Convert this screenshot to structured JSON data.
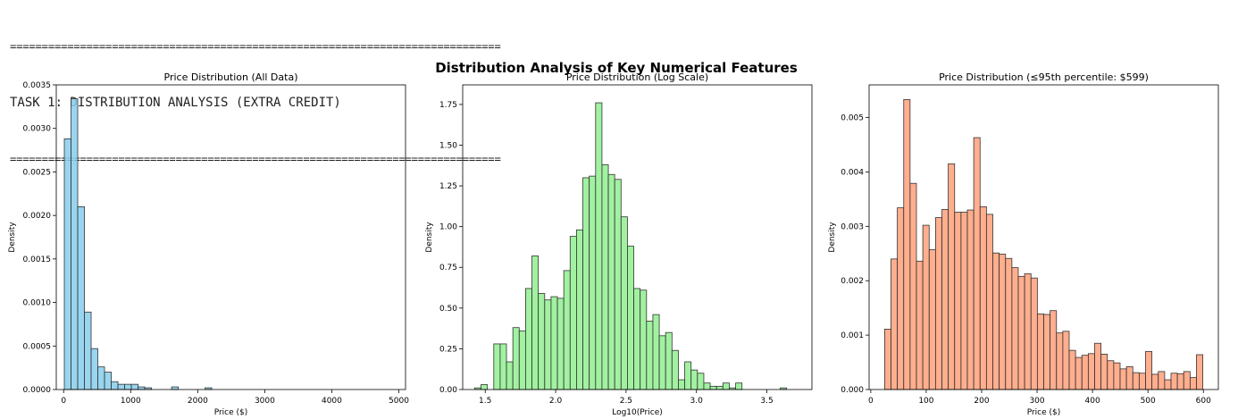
{
  "console": {
    "rule_top": "=============================================================================",
    "header": "TASK 1: DISTRIBUTION ANALYSIS (EXTRA CREDIT)",
    "rule_bottom": "============================================================================="
  },
  "figure": {
    "suptitle": "Distribution Analysis of Key Numerical Features"
  },
  "colors": {
    "panel1": "#87ceeb",
    "panel2": "#90ee90",
    "panel3": "#ffa07a",
    "edge": "#333333"
  },
  "chart_data": [
    {
      "type": "bar",
      "title": "Price Distribution (All Data)",
      "xlabel": "Price ($)",
      "ylabel": "Density",
      "xlim": [
        -110,
        5100
      ],
      "ylim": [
        0,
        0.0035
      ],
      "xticks": [
        0,
        1000,
        2000,
        3000,
        4000,
        5000
      ],
      "xtick_labels": [
        "0",
        "1000",
        "2000",
        "3000",
        "4000",
        "5000"
      ],
      "yticks": [
        0,
        0.0005,
        0.001,
        0.0015,
        0.002,
        0.0025,
        0.003,
        0.0035
      ],
      "ytick_labels": [
        "0.0000",
        "0.0005",
        "0.0010",
        "0.0015",
        "0.0020",
        "0.0025",
        "0.0030",
        "0.0035"
      ],
      "bin_start": 10,
      "bin_width": 100,
      "values": [
        0.00288,
        0.00334,
        0.0021,
        0.00089,
        0.00047,
        0.00026,
        0.0002,
        9e-05,
        6e-05,
        6e-05,
        6e-05,
        3e-05,
        2e-05,
        0,
        0,
        0,
        3e-05,
        0,
        0,
        0,
        0,
        2e-05
      ]
    },
    {
      "type": "bar",
      "title": "Price Distribution (Log Scale)",
      "xlabel": "Log10(Price)",
      "ylabel": "Density",
      "xlim": [
        1.34,
        3.82
      ],
      "ylim": [
        0,
        1.87
      ],
      "xticks": [
        1.5,
        2.0,
        2.5,
        3.0,
        3.5
      ],
      "xtick_labels": [
        "1.5",
        "2.0",
        "2.5",
        "3.0",
        "3.5"
      ],
      "yticks": [
        0,
        0.25,
        0.5,
        0.75,
        1.0,
        1.25,
        1.5,
        1.75
      ],
      "ytick_labels": [
        "0.00",
        "0.25",
        "0.50",
        "0.75",
        "1.00",
        "1.25",
        "1.50",
        "1.75"
      ],
      "bin_start": 1.425,
      "bin_width": 0.0452,
      "values": [
        0.01,
        0.03,
        0,
        0.28,
        0.28,
        0.17,
        0.38,
        0.36,
        0.62,
        0.82,
        0.59,
        0.55,
        0.57,
        0.56,
        0.73,
        0.94,
        0.98,
        1.3,
        1.31,
        1.76,
        1.38,
        1.32,
        1.29,
        1.06,
        0.88,
        0.62,
        0.61,
        0.42,
        0.46,
        0.33,
        0.35,
        0.24,
        0.06,
        0.17,
        0.12,
        0.1,
        0.04,
        0.02,
        0.02,
        0.04,
        0.01,
        0.04,
        0,
        0,
        0,
        0,
        0,
        0,
        0.01
      ]
    },
    {
      "type": "bar",
      "title": "Price Distribution (≤95th percentile: $599)",
      "xlabel": "Price ($)",
      "ylabel": "Density",
      "xlim": [
        -3,
        627
      ],
      "ylim": [
        0,
        0.0056
      ],
      "xticks": [
        0,
        100,
        200,
        300,
        400,
        500,
        600
      ],
      "xtick_labels": [
        "0",
        "100",
        "200",
        "300",
        "400",
        "500",
        "600"
      ],
      "yticks": [
        0,
        0.001,
        0.002,
        0.003,
        0.004,
        0.005
      ],
      "ytick_labels": [
        "0.000",
        "0.001",
        "0.002",
        "0.003",
        "0.004",
        "0.005"
      ],
      "bin_start": 25,
      "bin_width": 11.48,
      "values": [
        0.00111,
        0.0024,
        0.00334,
        0.00533,
        0.00379,
        0.00236,
        0.00302,
        0.00257,
        0.00316,
        0.00331,
        0.00415,
        0.00326,
        0.00326,
        0.0033,
        0.00463,
        0.00336,
        0.00322,
        0.00251,
        0.00249,
        0.00241,
        0.00224,
        0.00208,
        0.00213,
        0.00205,
        0.00139,
        0.00138,
        0.00145,
        0.00104,
        0.00107,
        0.00072,
        0.00059,
        0.00063,
        0.00066,
        0.00085,
        0.00065,
        0.00053,
        0.00049,
        0.00038,
        0.00042,
        0.00031,
        0.0003,
        0.0007,
        0.00028,
        0.00033,
        0.00018,
        0.0003,
        0.00029,
        0.00033,
        0.00022,
        0.00064
      ]
    }
  ]
}
